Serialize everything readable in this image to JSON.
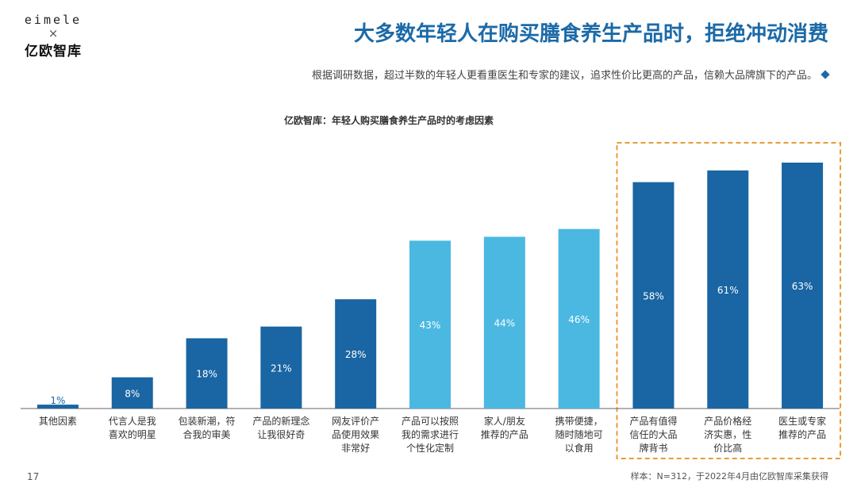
{
  "logo": {
    "top": "eimele",
    "x": "×",
    "bottom": "亿欧智库"
  },
  "header": {
    "title": "大多数年轻人在购买膳食养生产品时，拒绝冲动消费",
    "subtitle": "根据调研数据，超过半数的年轻人更看重医生和专家的建议，追求性价比更高的产品，信赖大品牌旗下的产品。"
  },
  "footer": {
    "source": "样本：N=312，于2022年4月由亿欧智库采集获得",
    "page": "17"
  },
  "colors": {
    "dark_blue": "#1a65a3",
    "light_blue": "#4bb8e2",
    "highlight_border": "#e89a3c",
    "axis": "#666666",
    "title_blue": "#1b6aa8"
  },
  "chart_data": {
    "type": "bar",
    "title": "亿欧智库：年轻人购买膳食养生产品时的考虑因素",
    "categories": [
      "其他因素",
      "代言人是我喜欢的明星",
      "包装新潮，符合我的审美",
      "产品的新理念让我很好奇",
      "网友评价产品使用效果非常好",
      "产品可以按照我的需求进行个性化定制",
      "家人/朋友推荐的产品",
      "携带便捷，随时随地可以食用",
      "产品有值得信任的大品牌背书",
      "产品价格经济实惠，性价比高",
      "医生或专家推荐的产品"
    ],
    "category_lines": [
      [
        "其他因素"
      ],
      [
        "代言人是我",
        "喜欢的明星"
      ],
      [
        "包装新潮，符",
        "合我的审美"
      ],
      [
        "产品的新理念",
        "让我很好奇"
      ],
      [
        "网友评价产",
        "品使用效果",
        "非常好"
      ],
      [
        "产品可以按照",
        "我的需求进行",
        "个性化定制"
      ],
      [
        "家人/朋友",
        "推荐的产品"
      ],
      [
        "携带便捷，",
        "随时随地可",
        "以食用"
      ],
      [
        "产品有值得",
        "信任的大品",
        "牌背书"
      ],
      [
        "产品价格经",
        "济实惠，性",
        "价比高"
      ],
      [
        "医生或专家",
        "推荐的产品"
      ]
    ],
    "values": [
      1,
      8,
      18,
      21,
      28,
      43,
      44,
      46,
      58,
      61,
      63
    ],
    "value_labels": [
      "1%",
      "8%",
      "18%",
      "21%",
      "28%",
      "43%",
      "44%",
      "46%",
      "58%",
      "61%",
      "63%"
    ],
    "bar_colors": [
      "dark",
      "dark",
      "dark",
      "dark",
      "dark",
      "light",
      "light",
      "light",
      "dark",
      "dark",
      "dark"
    ],
    "highlight_range": [
      8,
      10
    ],
    "ylim": [
      0,
      70
    ],
    "grid": false,
    "xlabel": "",
    "ylabel": ""
  }
}
